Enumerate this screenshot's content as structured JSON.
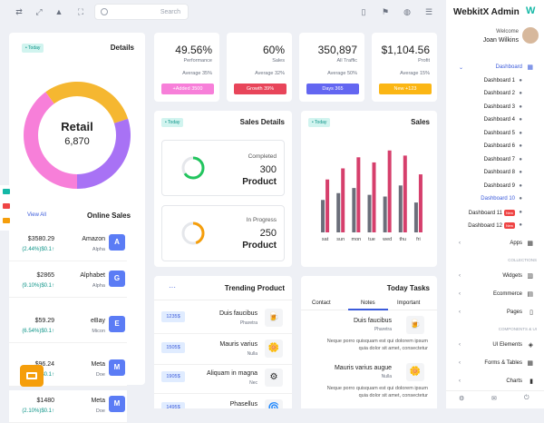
{
  "topbar": {
    "search_placeholder": "Search",
    "icons": [
      "shuffle-icon",
      "expand-icon",
      "bell-icon",
      "fullscreen-icon",
      "clipboard-icon",
      "flag-icon",
      "globe-icon",
      "menu-icon"
    ]
  },
  "sidebar": {
    "brand": "WebkitX Admin",
    "welcome": "Welcome",
    "user": "Joan Wilkins",
    "items": [
      {
        "label": "Dashboard",
        "type": "group"
      },
      {
        "label": "Dashboard 1"
      },
      {
        "label": "Dashboard 2"
      },
      {
        "label": "Dashboard 3"
      },
      {
        "label": "Dashboard 4"
      },
      {
        "label": "Dashboard 5"
      },
      {
        "label": "Dashboard 6"
      },
      {
        "label": "Dashboard 7"
      },
      {
        "label": "Dashboard 8"
      },
      {
        "label": "Dashboard 9"
      },
      {
        "label": "Dashboard 10",
        "active": true
      },
      {
        "label": "Dashboard 11",
        "badge": "New"
      },
      {
        "label": "Dashboard 12",
        "badge": "New"
      }
    ],
    "apps": "Apps",
    "section_collections": "COLLECTIONS",
    "widgets": "Widgets",
    "ecommerce": "Ecommerce",
    "pages": "Pages",
    "section_components": "COMPONENTS & UI",
    "ui_elements": "UI Elements",
    "forms_tables": "Forms & Tables",
    "charts": "Charts"
  },
  "details": {
    "pill": "• Today",
    "title": "Details",
    "donut_label": "Retail",
    "donut_value": "6,870",
    "slices": [
      {
        "value": 30,
        "color": "#a872f5"
      },
      {
        "value": 40,
        "color": "#f77fd9"
      },
      {
        "value": 30,
        "color": "#f5b731"
      }
    ]
  },
  "online_sales": {
    "view_all": "View All",
    "title": "Online Sales",
    "rows": [
      {
        "amount": "$3580.29",
        "pct": "(2.44%)$0.1↑",
        "name": "Amazon",
        "sub": "Alpha",
        "letter": "A"
      },
      {
        "amount": "$2865",
        "pct": "(9.10%)$0.1↑",
        "name": "Alphabet",
        "sub": "Alpha",
        "letter": "G"
      },
      {
        "amount": "$59.29",
        "pct": "(6.54%)$0.1↑",
        "name": "eBay",
        "sub": "Micon",
        "letter": "E"
      },
      {
        "amount": "$96.24",
        "pct": "(5.24%)$0.1↑",
        "name": "Meta",
        "sub": "Doe",
        "letter": "M"
      },
      {
        "amount": "$1480",
        "pct": "(2.10%)$0.1↑",
        "name": "Meta",
        "sub": "Doe",
        "letter": "M"
      }
    ]
  },
  "stats": [
    {
      "value": "49.56%",
      "label": "Performance",
      "avg": "Average 35%",
      "btn": "+Added 3500",
      "color": "#f77fd9"
    },
    {
      "value": "60%",
      "label": "Sales",
      "avg": "Average 32%",
      "btn": "Growth 39%",
      "color": "#e8455a"
    },
    {
      "value": "350,897",
      "label": "All Traffic",
      "avg": "Average 50%",
      "btn": "Days 365",
      "color": "#6366f1"
    },
    {
      "value": "$1,104.56",
      "label": "Profit",
      "avg": "Average 15%",
      "btn": "New +123",
      "color": "#fbb614"
    }
  ],
  "sales_details": {
    "pill": "• Today",
    "title": "Sales Details",
    "completed_label": "Completed",
    "completed_value": "300",
    "completed_unit": "Product",
    "completed_ring": 0.65,
    "inprogress_label": "In Progress",
    "inprogress_value": "250",
    "inprogress_unit": "Product",
    "inprogress_ring": 0.45
  },
  "sales": {
    "pill": "• Today",
    "title": "Sales"
  },
  "chart_data": {
    "type": "bar",
    "categories": [
      "sat",
      "sun",
      "mon",
      "tue",
      "wed",
      "thu",
      "fri"
    ],
    "series": [
      {
        "values": [
          38,
          46,
          52,
          44,
          42,
          55,
          35
        ],
        "color": "#6b6e7a"
      },
      {
        "values": [
          62,
          75,
          88,
          82,
          96,
          90,
          68
        ],
        "color": "#d63f6c"
      }
    ],
    "ylim": [
      0,
      100
    ],
    "grid": false
  },
  "trending": {
    "menu": "···",
    "title": "Trending Product",
    "rows": [
      {
        "price": "1235$",
        "name": "Duis faucibus",
        "sub": "Pharetra",
        "icon": "🍺"
      },
      {
        "price": "1505$",
        "name": "Mauris varius",
        "sub": "Nulla",
        "icon": "🌼"
      },
      {
        "price": "1905$",
        "name": "Aliquam in magna",
        "sub": "Nec",
        "icon": "⚙"
      },
      {
        "price": "1495$",
        "name": "Phasellus",
        "sub": "",
        "icon": "🌀"
      }
    ]
  },
  "tasks": {
    "title": "Today Tasks",
    "tabs": [
      "Contact",
      "Notes",
      "Important"
    ],
    "active_tab": 1,
    "items": [
      {
        "name": "Duis faucibus",
        "sub": "Pharetra",
        "desc": "Neque porro quisquam est qui dolorem ipsum quia dolor sit amet, consectetur",
        "icon": "🍺"
      },
      {
        "name": "Mauris varius augue",
        "sub": "Nulla",
        "desc": "Neque porro quisquam est qui dolorem ipsum quia dolor sit amet, consectetur",
        "icon": "🌼"
      },
      {
        "name": "",
        "sub": "",
        "desc": "Neque porro quisquam est qui dolorem ipsum quia dolor sit amet, consectetur",
        "icon": ""
      }
    ]
  }
}
